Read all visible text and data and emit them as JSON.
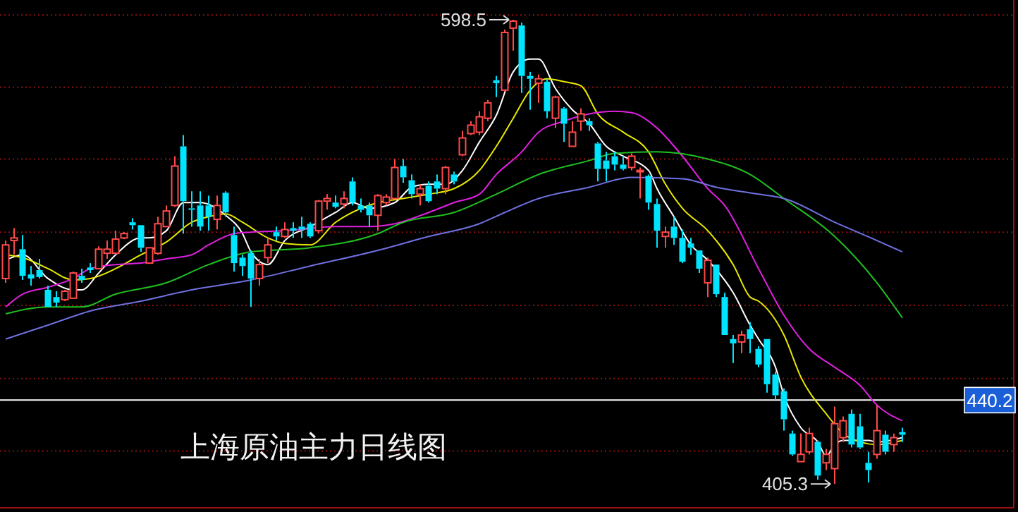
{
  "chart_data": {
    "type": "candlestick",
    "title": "上海原油主力日线图",
    "categories": [
      null,
      null,
      null,
      null,
      null,
      null,
      null,
      null,
      null,
      null,
      null,
      null,
      null,
      null,
      null,
      null,
      null,
      null,
      null,
      null,
      null,
      null,
      null,
      null,
      null,
      null,
      null,
      null,
      null,
      null,
      null,
      null,
      null,
      null,
      null,
      null,
      null,
      null,
      null,
      null,
      null,
      null,
      null,
      null,
      null,
      null,
      null,
      null,
      null,
      null,
      null,
      null,
      null,
      null,
      null,
      null,
      null,
      null,
      null,
      null,
      null,
      null,
      null,
      null,
      null,
      null,
      null,
      null,
      null,
      null,
      null,
      null,
      null,
      null,
      null,
      null,
      null,
      null,
      null,
      null,
      null,
      null,
      null,
      null,
      null,
      null,
      null,
      null,
      null,
      null,
      null,
      null,
      null,
      null,
      null,
      null,
      null,
      null,
      null,
      null,
      null,
      null,
      null,
      null,
      null,
      null,
      null
    ],
    "ohlc": [
      [
        490.8,
        506.6,
        489.0,
        504.8
      ],
      [
        506.6,
        511.8,
        500.7,
        507.7
      ],
      [
        503.0,
        508.9,
        490.2,
        491.9
      ],
      [
        492.5,
        496.0,
        487.8,
        490.8
      ],
      [
        494.3,
        499.0,
        490.8,
        491.4
      ],
      [
        486.1,
        487.8,
        479.0,
        479.0
      ],
      [
        483.1,
        485.5,
        479.0,
        480.8
      ],
      [
        482.0,
        486.1,
        481.4,
        485.5
      ],
      [
        482.6,
        493.7,
        482.6,
        493.1
      ],
      [
        491.9,
        494.9,
        489.0,
        490.2
      ],
      [
        495.4,
        497.2,
        493.1,
        494.3
      ],
      [
        494.9,
        504.2,
        494.9,
        503.0
      ],
      [
        501.3,
        506.6,
        499.0,
        503.0
      ],
      [
        501.3,
        510.7,
        500.7,
        507.2
      ],
      [
        507.7,
        510.1,
        507.2,
        509.5
      ],
      [
        514.2,
        515.9,
        511.2,
        513.0
      ],
      [
        513.0,
        513.0,
        501.9,
        503.6
      ],
      [
        497.2,
        503.6,
        497.2,
        503.6
      ],
      [
        501.3,
        516.5,
        500.7,
        513.6
      ],
      [
        512.4,
        521.2,
        512.4,
        518.9
      ],
      [
        521.2,
        541.7,
        520.6,
        537.6
      ],
      [
        545.8,
        550.5,
        509.5,
        523.0
      ],
      [
        520.0,
        527.1,
        512.4,
        519.4
      ],
      [
        521.2,
        527.1,
        510.7,
        512.4
      ],
      [
        521.2,
        525.3,
        510.7,
        516.5
      ],
      [
        515.4,
        525.3,
        511.2,
        521.2
      ],
      [
        526.5,
        527.1,
        516.5,
        518.3
      ],
      [
        508.9,
        512.4,
        493.7,
        497.2
      ],
      [
        499.5,
        500.7,
        491.9,
        496.0
      ],
      [
        501.3,
        502.5,
        479.0,
        490.8
      ],
      [
        490.8,
        499.0,
        487.8,
        496.6
      ],
      [
        499.5,
        507.7,
        497.2,
        504.8
      ],
      [
        510.1,
        512.4,
        506.6,
        508.3
      ],
      [
        508.3,
        514.2,
        507.7,
        511.2
      ],
      [
        511.8,
        514.2,
        507.7,
        510.7
      ],
      [
        512.4,
        516.5,
        507.7,
        511.2
      ],
      [
        513.6,
        514.2,
        507.7,
        508.3
      ],
      [
        510.7,
        523.5,
        509.5,
        523.0
      ],
      [
        523.0,
        525.9,
        519.4,
        524.1
      ],
      [
        522.4,
        525.3,
        520.0,
        520.6
      ],
      [
        521.8,
        527.1,
        520.0,
        524.1
      ],
      [
        531.2,
        532.9,
        521.2,
        522.4
      ],
      [
        521.2,
        524.1,
        518.3,
        519.4
      ],
      [
        521.2,
        522.4,
        512.4,
        517.1
      ],
      [
        517.1,
        525.9,
        510.7,
        525.3
      ],
      [
        522.4,
        525.9,
        521.2,
        524.7
      ],
      [
        524.1,
        540.5,
        524.1,
        537.0
      ],
      [
        537.6,
        540.5,
        530.6,
        532.9
      ],
      [
        531.7,
        534.1,
        524.1,
        525.9
      ],
      [
        525.9,
        530.0,
        521.2,
        528.2
      ],
      [
        529.4,
        531.2,
        522.4,
        523.0
      ],
      [
        531.2,
        534.1,
        525.9,
        528.2
      ],
      [
        528.2,
        537.6,
        525.9,
        537.0
      ],
      [
        534.1,
        535.3,
        530.0,
        531.2
      ],
      [
        542.3,
        552.2,
        541.7,
        549.3
      ],
      [
        551.1,
        556.3,
        550.5,
        554.6
      ],
      [
        551.7,
        560.4,
        550.5,
        558.1
      ],
      [
        557.5,
        565.1,
        556.3,
        563.9
      ],
      [
        573.3,
        575.1,
        566.3,
        572.1
      ],
      [
        569.2,
        594.4,
        568.6,
        593.2
      ],
      [
        595.0,
        598.5,
        585.6,
        597.9
      ],
      [
        596.1,
        597.3,
        568.0,
        575.1
      ],
      [
        575.1,
        576.8,
        561.0,
        573.9
      ],
      [
        572.1,
        575.7,
        563.9,
        573.9
      ],
      [
        572.7,
        573.9,
        557.5,
        560.4
      ],
      [
        557.5,
        566.9,
        553.4,
        566.3
      ],
      [
        561.6,
        562.2,
        547.6,
        555.2
      ],
      [
        545.8,
        556.3,
        545.8,
        551.7
      ],
      [
        556.3,
        561.6,
        552.2,
        559.3
      ],
      [
        556.3,
        557.5,
        552.2,
        554.6
      ],
      [
        547.0,
        547.6,
        531.2,
        536.4
      ],
      [
        539.9,
        543.5,
        531.2,
        536.4
      ],
      [
        541.7,
        543.5,
        535.8,
        538.2
      ],
      [
        538.2,
        541.7,
        535.8,
        536.4
      ],
      [
        537.0,
        542.9,
        535.8,
        541.7
      ],
      [
        535.3,
        537.0,
        524.1,
        535.8
      ],
      [
        533.5,
        534.1,
        519.4,
        522.4
      ],
      [
        521.8,
        524.1,
        503.6,
        510.7
      ],
      [
        508.3,
        512.4,
        503.6,
        510.1
      ],
      [
        512.4,
        516.5,
        504.8,
        507.7
      ],
      [
        507.7,
        511.2,
        497.2,
        497.8
      ],
      [
        505.4,
        507.7,
        500.7,
        503.6
      ],
      [
        502.5,
        502.5,
        493.1,
        494.9
      ],
      [
        489.0,
        499.5,
        483.1,
        498.4
      ],
      [
        496.6,
        496.6,
        483.1,
        484.3
      ],
      [
        483.1,
        484.9,
        467.3,
        467.3
      ],
      [
        465.6,
        467.3,
        455.6,
        463.8
      ],
      [
        464.4,
        469.1,
        459.7,
        467.3
      ],
      [
        469.7,
        472.6,
        459.7,
        465.6
      ],
      [
        461.5,
        462.6,
        453.9,
        455.0
      ],
      [
        465.6,
        465.6,
        443.3,
        446.8
      ],
      [
        450.9,
        452.1,
        440.4,
        442.2
      ],
      [
        443.9,
        445.1,
        427.5,
        432.2
      ],
      [
        426.3,
        427.5,
        417.0,
        417.6
      ],
      [
        414.6,
        426.3,
        414.6,
        417.6
      ],
      [
        418.7,
        428.7,
        417.6,
        426.3
      ],
      [
        422.8,
        423.4,
        407.0,
        408.8
      ],
      [
        414.1,
        419.9,
        411.1,
        417.6
      ],
      [
        411.7,
        437.5,
        405.3,
        430.4
      ],
      [
        424.6,
        433.4,
        422.8,
        431.6
      ],
      [
        434.5,
        436.3,
        420.5,
        421.7
      ],
      [
        429.3,
        434.5,
        419.9,
        420.5
      ],
      [
        414.1,
        418.7,
        405.9,
        411.1
      ],
      [
        417.6,
        438.1,
        415.8,
        427.5
      ],
      [
        425.8,
        427.5,
        417.6,
        418.7
      ],
      [
        421.7,
        426.3,
        418.7,
        424.6
      ],
      [
        426.9,
        428.7,
        422.8,
        425.8
      ]
    ],
    "colors": [
      "#ff4a4a",
      "#ff4a4a",
      "#00e5ff",
      "#00e5ff",
      "#00e5ff",
      "#00e5ff",
      "#00e5ff",
      "#ff4a4a",
      "#ff4a4a",
      "#00e5ff",
      "#00e5ff",
      "#ff4a4a",
      "#ff4a4a",
      "#ff4a4a",
      "#ff4a4a",
      "#00e5ff",
      "#00e5ff",
      "#ff4a4a",
      "#ff4a4a",
      "#ff4a4a",
      "#ff4a4a",
      "#00e5ff",
      "#00e5ff",
      "#00e5ff",
      "#00e5ff",
      "#ff4a4a",
      "#00e5ff",
      "#00e5ff",
      "#00e5ff",
      "#00e5ff",
      "#ff4a4a",
      "#ff4a4a",
      "#00e5ff",
      "#ff4a4a",
      "#00e5ff",
      "#00e5ff",
      "#00e5ff",
      "#ff4a4a",
      "#ff4a4a",
      "#00e5ff",
      "#ff4a4a",
      "#00e5ff",
      "#00e5ff",
      "#00e5ff",
      "#ff4a4a",
      "#ff4a4a",
      "#ff4a4a",
      "#00e5ff",
      "#00e5ff",
      "#ff4a4a",
      "#00e5ff",
      "#00e5ff",
      "#ff4a4a",
      "#00e5ff",
      "#ff4a4a",
      "#ff4a4a",
      "#ff4a4a",
      "#ff4a4a",
      "#00e5ff",
      "#ff4a4a",
      "#ff4a4a",
      "#00e5ff",
      "#00e5ff",
      "#ff4a4a",
      "#00e5ff",
      "#ff4a4a",
      "#00e5ff",
      "#ff4a4a",
      "#ff4a4a",
      "#00e5ff",
      "#00e5ff",
      "#00e5ff",
      "#00e5ff",
      "#00e5ff",
      "#ff4a4a",
      "#ff4a4a",
      "#00e5ff",
      "#00e5ff",
      "#ff4a4a",
      "#00e5ff",
      "#00e5ff",
      "#00e5ff",
      "#00e5ff",
      "#ff4a4a",
      "#00e5ff",
      "#00e5ff",
      "#00e5ff",
      "#ff4a4a",
      "#00e5ff",
      "#00e5ff",
      "#00e5ff",
      "#00e5ff",
      "#00e5ff",
      "#00e5ff",
      "#ff4a4a",
      "#ff4a4a",
      "#00e5ff",
      "#ff4a4a",
      "#ff4a4a",
      "#ff4a4a",
      "#00e5ff",
      "#00e5ff",
      "#00e5ff",
      "#ff4a4a",
      "#00e5ff",
      "#ff4a4a",
      "#00e5ff"
    ],
    "series": [
      {
        "type": "line",
        "color": "#ffffff",
        "values": [
          498.4,
          null,
          500.7,
          null,
          null,
          490.8,
          null,
          null,
          486.1,
          486.1,
          null,
          493.1,
          null,
          500.7,
          null,
          null,
          507.7,
          507.7,
          null,
          510.7,
          null,
          522.4,
          null,
          522.4,
          null,
          null,
          517.1,
          null,
          509.5,
          501.9,
          null,
          496.6,
          null,
          506.6,
          null,
          null,
          512.4,
          null,
          null,
          518.3,
          null,
          522.4,
          null,
          520.0,
          null,
          null,
          522.4,
          null,
          528.8,
          null,
          530.0,
          null,
          530.0,
          null,
          535.8,
          null,
          547.6,
          null,
          558.7,
          null,
          576.8,
          null,
          582.1,
          582.1,
          null,
          569.8,
          null,
          561.0,
          null,
          555.2,
          null,
          545.8,
          null,
          541.7,
          null,
          null,
          535.8,
          528.2,
          null,
          516.5,
          null,
          504.8,
          null,
          498.4,
          null,
          null,
          484.9,
          null,
          471.4,
          465.6,
          null,
          453.9,
          442.2,
          null,
          428.7,
          null,
          422.8,
          417.0,
          421.7,
          423.4,
          null,
          null,
          423.4,
          422.8,
          null,
          null,
          424.6
        ]
      },
      {
        "type": "line",
        "color": "#e8e800",
        "values": [
          500.7,
          null,
          499.5,
          null,
          null,
          494.9,
          null,
          null,
          490.2,
          null,
          490.8,
          null,
          null,
          494.9,
          null,
          null,
          500.7,
          null,
          null,
          506.0,
          null,
          null,
          514.2,
          null,
          516.5,
          null,
          517.7,
          null,
          514.2,
          null,
          null,
          507.7,
          null,
          505.4,
          null,
          null,
          504.8,
          null,
          null,
          514.2,
          null,
          null,
          520.0,
          null,
          522.4,
          null,
          null,
          524.1,
          null,
          null,
          525.9,
          null,
          null,
          528.2,
          null,
          null,
          535.8,
          null,
          545.8,
          null,
          557.5,
          null,
          569.2,
          null,
          573.9,
          null,
          572.7,
          null,
          571.0,
          null,
          559.3,
          null,
          null,
          551.7,
          null,
          null,
          543.5,
          null,
          530.0,
          null,
          520.0,
          null,
          null,
          510.7,
          null,
          null,
          496.6,
          null,
          483.1,
          481.4,
          null,
          null,
          467.3,
          null,
          449.8,
          null,
          null,
          434.5,
          null,
          426.3,
          null,
          422.8,
          null,
          421.7,
          null,
          null,
          423.4
        ]
      },
      {
        "type": "line",
        "color": "#e020e0",
        "values": [
          479.0,
          null,
          484.3,
          null,
          null,
          487.2,
          null,
          null,
          490.8,
          null,
          494.9,
          null,
          null,
          496.6,
          null,
          null,
          497.2,
          null,
          null,
          499.0,
          null,
          null,
          500.7,
          null,
          504.8,
          null,
          null,
          509.5,
          null,
          510.1,
          null,
          null,
          null,
          510.7,
          null,
          null,
          null,
          null,
          null,
          512.4,
          null,
          null,
          null,
          512.4,
          null,
          null,
          513.6,
          null,
          null,
          null,
          518.3,
          null,
          null,
          522.4,
          null,
          null,
          525.9,
          null,
          534.1,
          null,
          null,
          543.5,
          null,
          551.7,
          null,
          null,
          556.3,
          null,
          null,
          559.3,
          null,
          null,
          560.4,
          null,
          559.8,
          null,
          null,
          553.4,
          null,
          null,
          541.7,
          null,
          null,
          528.2,
          null,
          521.2,
          null,
          null,
          null,
          494.9,
          null,
          null,
          475.5,
          null,
          null,
          461.5,
          null,
          null,
          453.9,
          null,
          null,
          446.3,
          null,
          438.1,
          null,
          null,
          431.6
        ]
      },
      {
        "type": "line",
        "color": "#20c020",
        "values": [
          476.1,
          null,
          null,
          null,
          null,
          479.0,
          null,
          null,
          null,
          479.0,
          null,
          null,
          null,
          484.3,
          null,
          null,
          null,
          null,
          null,
          489.0,
          null,
          null,
          null,
          null,
          496.6,
          null,
          null,
          null,
          null,
          501.9,
          null,
          null,
          null,
          null,
          null,
          null,
          503.6,
          null,
          null,
          null,
          null,
          null,
          null,
          null,
          509.5,
          null,
          null,
          514.2,
          null,
          null,
          null,
          null,
          null,
          518.3,
          null,
          null,
          null,
          null,
          525.9,
          null,
          null,
          null,
          null,
          534.1,
          null,
          null,
          null,
          null,
          null,
          539.9,
          null,
          null,
          542.9,
          null,
          null,
          null,
          null,
          543.5,
          null,
          null,
          null,
          null,
          null,
          540.5,
          null,
          null,
          null,
          null,
          534.1,
          null,
          null,
          null,
          524.1,
          null,
          null,
          null,
          null,
          null,
          508.3,
          null,
          null,
          null,
          null,
          489.0,
          null,
          null,
          474.4
        ]
      },
      {
        "type": "line",
        "color": "#7070e0",
        "values": [
          465.6,
          null,
          null,
          null,
          null,
          471.4,
          null,
          null,
          null,
          null,
          477.3,
          null,
          null,
          null,
          null,
          null,
          481.4,
          null,
          null,
          null,
          null,
          null,
          486.1,
          null,
          null,
          null,
          null,
          null,
          null,
          490.2,
          null,
          null,
          null,
          null,
          null,
          null,
          496.0,
          null,
          null,
          null,
          null,
          null,
          null,
          null,
          502.5,
          null,
          null,
          null,
          null,
          null,
          508.3,
          null,
          null,
          null,
          null,
          null,
          513.6,
          null,
          null,
          518.3,
          null,
          null,
          null,
          524.1,
          null,
          null,
          null,
          null,
          null,
          528.8,
          null,
          null,
          null,
          null,
          532.9,
          null,
          null,
          null,
          null,
          null,
          532.3,
          null,
          null,
          null,
          528.8,
          null,
          null,
          null,
          null,
          525.9,
          null,
          null,
          524.1,
          null,
          null,
          null,
          null,
          null,
          514.2,
          null,
          null,
          null,
          null,
          506.6,
          null,
          null,
          501.9
        ]
      }
    ],
    "ylim": [
      395.4,
      606.7
    ],
    "yticks": [
      {
        "value": 600.5,
        "label": null
      },
      {
        "value": 570.4,
        "label": null
      },
      {
        "value": 540.5,
        "label": null
      },
      {
        "value": 510.1,
        "label": null
      },
      {
        "value": 479.6,
        "label": null
      },
      {
        "value": 449.2,
        "label": null
      },
      {
        "value": 419.0,
        "label": null
      }
    ],
    "grid": "y",
    "ref_lines": [
      {
        "axis": "y",
        "value": 440.2,
        "label": "440.2",
        "color": "#ffffff"
      }
    ],
    "annotations": [
      "598.5",
      "405.3"
    ]
  }
}
